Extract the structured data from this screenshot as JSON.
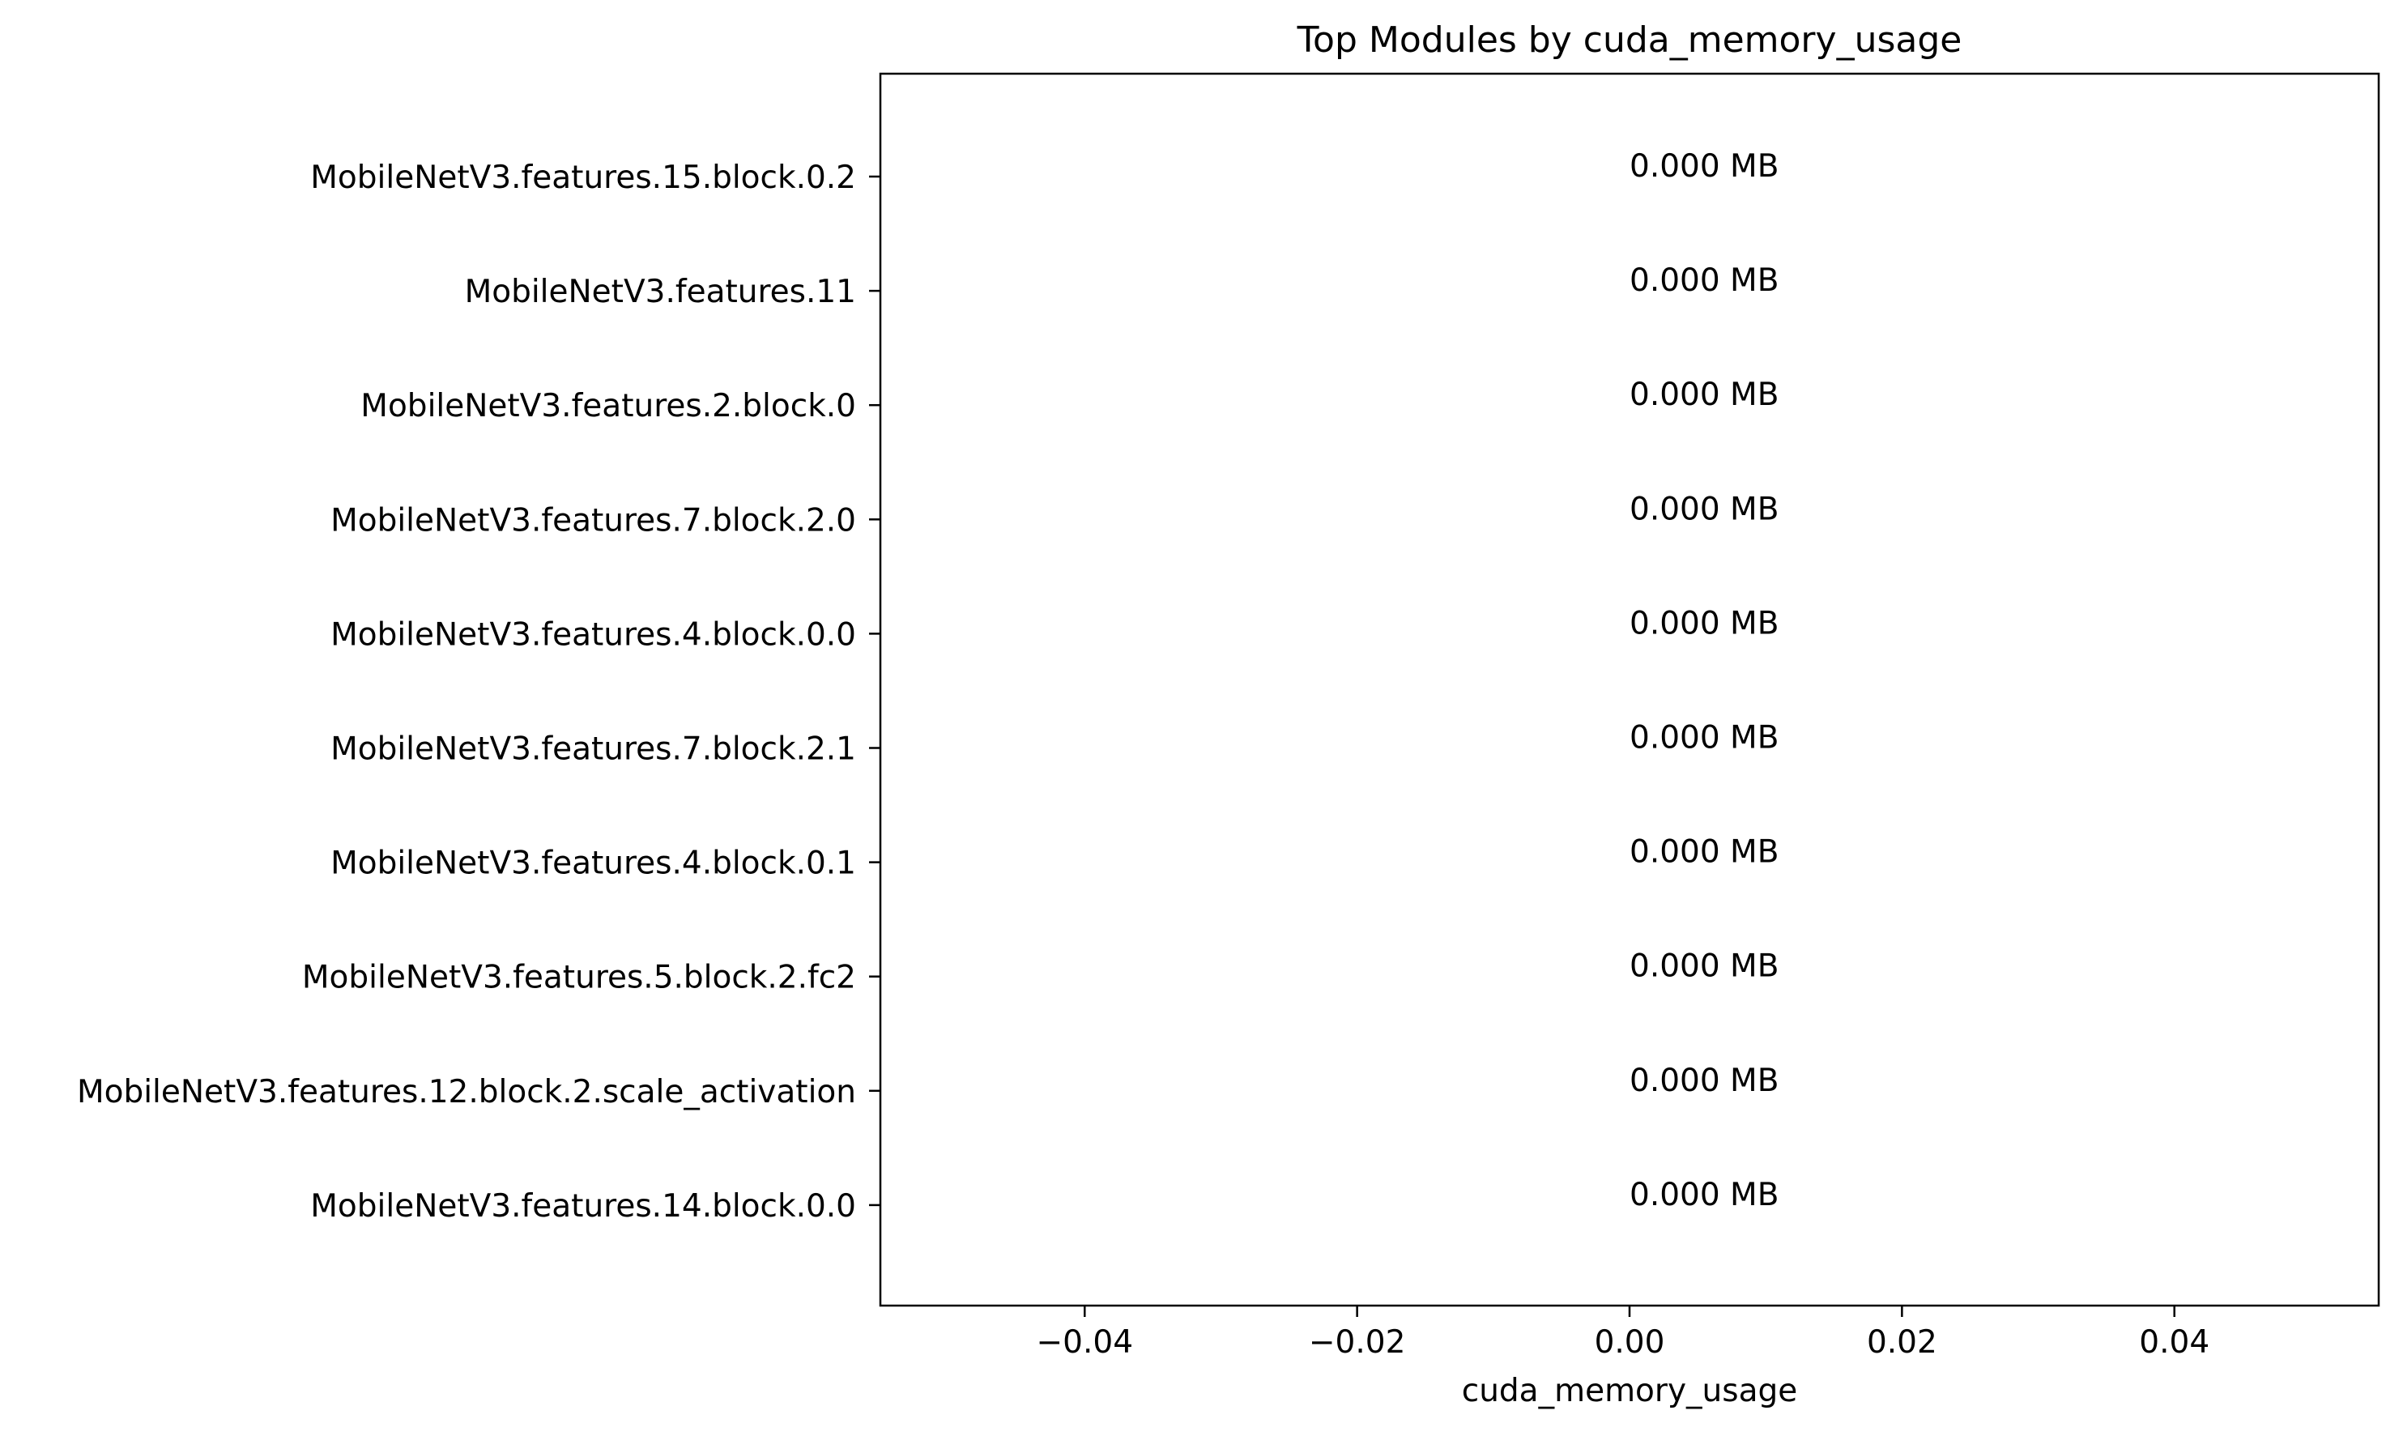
{
  "chart_data": {
    "type": "bar",
    "orientation": "horizontal",
    "title": "Top Modules by cuda_memory_usage",
    "xlabel": "cuda_memory_usage",
    "ylabel": "",
    "categories": [
      "MobileNetV3.features.15.block.0.2",
      "MobileNetV3.features.11",
      "MobileNetV3.features.2.block.0",
      "MobileNetV3.features.7.block.2.0",
      "MobileNetV3.features.4.block.0.0",
      "MobileNetV3.features.7.block.2.1",
      "MobileNetV3.features.4.block.0.1",
      "MobileNetV3.features.5.block.2.fc2",
      "MobileNetV3.features.12.block.2.scale_activation",
      "MobileNetV3.features.14.block.0.0"
    ],
    "values": [
      0,
      0,
      0,
      0,
      0,
      0,
      0,
      0,
      0,
      0
    ],
    "data_labels": [
      "0.000 MB",
      "0.000 MB",
      "0.000 MB",
      "0.000 MB",
      "0.000 MB",
      "0.000 MB",
      "0.000 MB",
      "0.000 MB",
      "0.000 MB",
      "0.000 MB"
    ],
    "xlim": [
      -0.055,
      0.055
    ],
    "xticks": [
      -0.04,
      -0.02,
      0.0,
      0.02,
      0.04
    ],
    "xtick_labels": [
      "−0.04",
      "−0.02",
      "0.00",
      "0.02",
      "0.04"
    ],
    "grid": false,
    "legend": "none",
    "colors": {
      "axis": "#000000",
      "text": "#000000",
      "background": "#ffffff"
    }
  }
}
